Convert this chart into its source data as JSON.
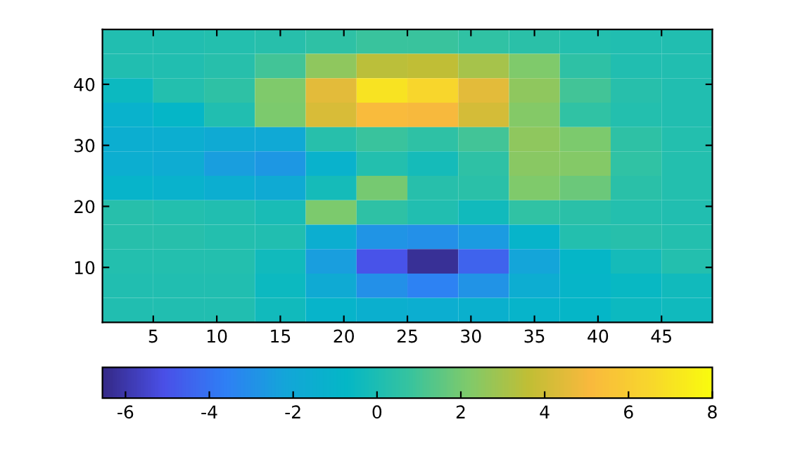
{
  "chart_data": {
    "type": "heatmap",
    "xlim": [
      1,
      49
    ],
    "ylim": [
      1,
      49
    ],
    "xticks": [
      5,
      10,
      15,
      20,
      25,
      30,
      35,
      40,
      45
    ],
    "yticks": [
      10,
      20,
      30,
      40
    ],
    "cells": [
      [
        0.1,
        0.1,
        0.2,
        0.3,
        0.5,
        0.8,
        0.8,
        0.6,
        0.4,
        0.2,
        0.1,
        0.1
      ],
      [
        0.1,
        0.1,
        0.3,
        1.0,
        2.5,
        3.5,
        3.6,
        3.0,
        2.2,
        0.5,
        0.1,
        0.1
      ],
      [
        -0.5,
        0.2,
        0.5,
        2.2,
        4.5,
        7.0,
        6.5,
        4.5,
        2.5,
        1.0,
        0.3,
        0.1
      ],
      [
        -1.2,
        -0.8,
        0.1,
        2.1,
        4.2,
        5.2,
        5.0,
        4.1,
        2.3,
        0.6,
        0.2,
        0.1
      ],
      [
        -1.5,
        -1.5,
        -1.8,
        -1.9,
        0.3,
        0.8,
        0.5,
        1.0,
        2.5,
        2.1,
        0.5,
        0.2
      ],
      [
        -1.5,
        -1.7,
        -2.5,
        -2.7,
        -1.2,
        0.2,
        -0.2,
        0.5,
        2.4,
        2.3,
        0.6,
        0.2
      ],
      [
        -1.0,
        -1.2,
        -1.5,
        -1.8,
        -0.2,
        2.0,
        0.3,
        0.4,
        2.2,
        1.8,
        0.4,
        0.2
      ],
      [
        0.3,
        0.2,
        0.1,
        -0.1,
        2.1,
        0.5,
        0.1,
        -0.3,
        0.6,
        0.4,
        0.2,
        0.1
      ],
      [
        0.3,
        0.3,
        0.2,
        0.1,
        -1.5,
        -2.8,
        -3.0,
        -2.6,
        -1.0,
        0.2,
        0.3,
        0.2
      ],
      [
        0.2,
        0.2,
        0.2,
        -0.3,
        -2.5,
        -5.0,
        -6.3,
        -4.5,
        -2.2,
        -0.8,
        -0.2,
        0.2
      ],
      [
        0.1,
        0.1,
        0.1,
        -0.5,
        -1.8,
        -3.0,
        -3.5,
        -2.9,
        -1.6,
        -0.9,
        -0.6,
        -0.3
      ],
      [
        0.1,
        0.1,
        0.1,
        -0.3,
        -1.0,
        -1.4,
        -1.5,
        -1.3,
        -1.0,
        -0.8,
        -0.5,
        -0.4
      ]
    ],
    "clim": [
      -6.55,
      8
    ],
    "cticks": [
      -6,
      -4,
      -2,
      0,
      2,
      4,
      6,
      8
    ]
  }
}
